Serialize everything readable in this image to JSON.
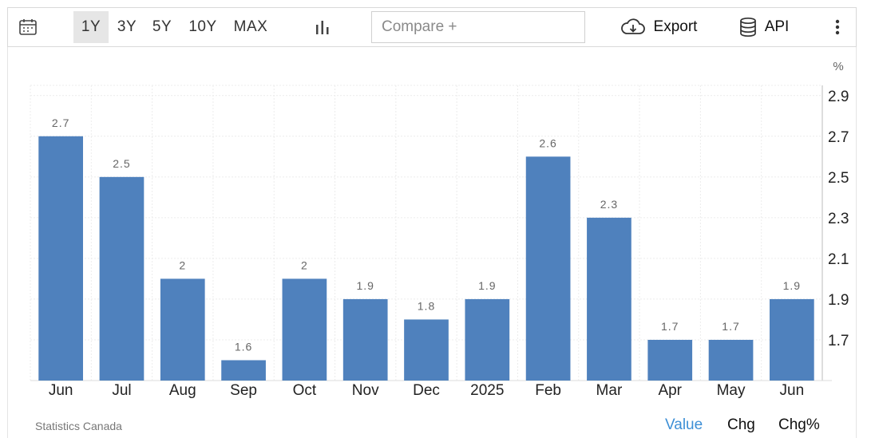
{
  "toolbar": {
    "ranges": [
      "1Y",
      "3Y",
      "5Y",
      "10Y",
      "MAX"
    ],
    "active_range": "1Y",
    "compare_placeholder": "Compare +",
    "export_label": "Export",
    "api_label": "API"
  },
  "chart_data": {
    "type": "bar",
    "categories": [
      "Jun",
      "Jul",
      "Aug",
      "Sep",
      "Oct",
      "Nov",
      "Dec",
      "2025",
      "Feb",
      "Mar",
      "Apr",
      "May",
      "Jun"
    ],
    "values": [
      2.7,
      2.5,
      2.0,
      1.6,
      2.0,
      1.9,
      1.8,
      1.9,
      2.6,
      2.3,
      1.7,
      1.7,
      1.9
    ],
    "data_labels": [
      "2.7",
      "2.5",
      "2",
      "1.6",
      "2",
      "1.9",
      "1.8",
      "1.9",
      "2.6",
      "2.3",
      "1.7",
      "1.7",
      "1.9"
    ],
    "ylabel": "%",
    "yticks": [
      "2.9",
      "2.7",
      "2.5",
      "2.3",
      "2.1",
      "1.9",
      "1.7"
    ],
    "ylim": [
      1.5,
      2.95
    ],
    "y_axis_side": "right",
    "grid": true,
    "bar_color": "#4f81bd"
  },
  "footer": {
    "source": "Statistics Canada",
    "modes": [
      "Value",
      "Chg",
      "Chg%"
    ],
    "active_mode": "Value",
    "active_color": "#3d8fd6"
  }
}
